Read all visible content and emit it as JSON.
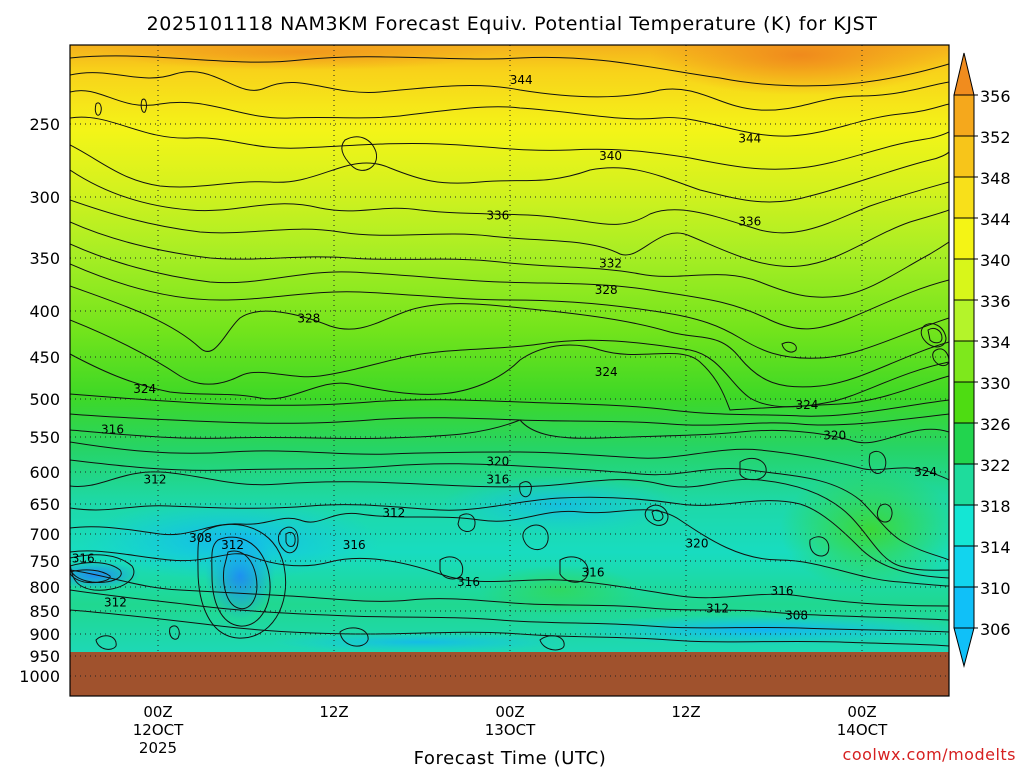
{
  "chart_data": {
    "type": "heatmap",
    "title": "2025101118 NAM3KM Forecast Equiv. Potential Temperature (K) for KJST",
    "xlabel": "Forecast Time (UTC)",
    "ylabel": "",
    "credit": "coolwx.com/modelts",
    "y_ticks": [
      "250",
      "300",
      "350",
      "400",
      "450",
      "500",
      "550",
      "600",
      "650",
      "700",
      "750",
      "800",
      "850",
      "900",
      "950",
      "1000"
    ],
    "x_ticks": [
      {
        "hour": 6,
        "lines": [
          "00Z",
          "12OCT",
          "2025"
        ]
      },
      {
        "hour": 18,
        "lines": [
          "12Z"
        ]
      },
      {
        "hour": 30,
        "lines": [
          "00Z",
          "13OCT"
        ]
      },
      {
        "hour": 42,
        "lines": [
          "12Z"
        ]
      },
      {
        "hour": 54,
        "lines": [
          "00Z",
          "14OCT"
        ]
      }
    ],
    "x_range_hours": [
      0,
      60
    ],
    "y_range_hpa": [
      200,
      1000
    ],
    "surface_pressure_hpa": 950,
    "colorbar": {
      "labels": [
        "356",
        "352",
        "348",
        "344",
        "340",
        "336",
        "334",
        "330",
        "326",
        "322",
        "318",
        "314",
        "310",
        "306"
      ],
      "colors": [
        "#f08c1e",
        "#f5a81c",
        "#f7c51a",
        "#f8e01a",
        "#f4f415",
        "#d8f61a",
        "#b4f42a",
        "#7ee81c",
        "#4edc12",
        "#22d44e",
        "#1edc9c",
        "#14e6d4",
        "#12d4ee",
        "#10c0f8"
      ]
    },
    "contour_labels": [
      {
        "value": "344",
        "hour": 30.8,
        "hpa": 222
      },
      {
        "value": "344",
        "hour": 46.4,
        "hpa": 260
      },
      {
        "value": "340",
        "hour": 36.9,
        "hpa": 272
      },
      {
        "value": "336",
        "hour": 29.2,
        "hpa": 315
      },
      {
        "value": "336",
        "hour": 46.4,
        "hpa": 320
      },
      {
        "value": "332",
        "hour": 36.9,
        "hpa": 355
      },
      {
        "value": "328",
        "hour": 16.3,
        "hpa": 408
      },
      {
        "value": "328",
        "hour": 36.6,
        "hpa": 380
      },
      {
        "value": "324",
        "hour": 5.1,
        "hpa": 488
      },
      {
        "value": "324",
        "hour": 36.6,
        "hpa": 468
      },
      {
        "value": "324",
        "hour": 50.3,
        "hpa": 508
      },
      {
        "value": "324",
        "hour": 58.4,
        "hpa": 600
      },
      {
        "value": "320",
        "hour": 29.2,
        "hpa": 585
      },
      {
        "value": "320",
        "hour": 52.2,
        "hpa": 548
      },
      {
        "value": "320",
        "hour": 42.8,
        "hpa": 718
      },
      {
        "value": "316",
        "hour": 2.9,
        "hpa": 540
      },
      {
        "value": "316",
        "hour": 29.2,
        "hpa": 612
      },
      {
        "value": "316",
        "hour": 19.4,
        "hpa": 720
      },
      {
        "value": "316",
        "hour": 35.7,
        "hpa": 772
      },
      {
        "value": "316",
        "hour": 27.2,
        "hpa": 790
      },
      {
        "value": "316",
        "hour": 0.9,
        "hpa": 745
      },
      {
        "value": "316",
        "hour": 48.6,
        "hpa": 808
      },
      {
        "value": "312",
        "hour": 5.8,
        "hpa": 612
      },
      {
        "value": "312",
        "hour": 22.1,
        "hpa": 665
      },
      {
        "value": "312",
        "hour": 11.1,
        "hpa": 720
      },
      {
        "value": "312",
        "hour": 3.1,
        "hpa": 832
      },
      {
        "value": "312",
        "hour": 44.2,
        "hpa": 845
      },
      {
        "value": "308",
        "hour": 8.9,
        "hpa": 707
      },
      {
        "value": "308",
        "hour": 49.6,
        "hpa": 860
      }
    ]
  }
}
